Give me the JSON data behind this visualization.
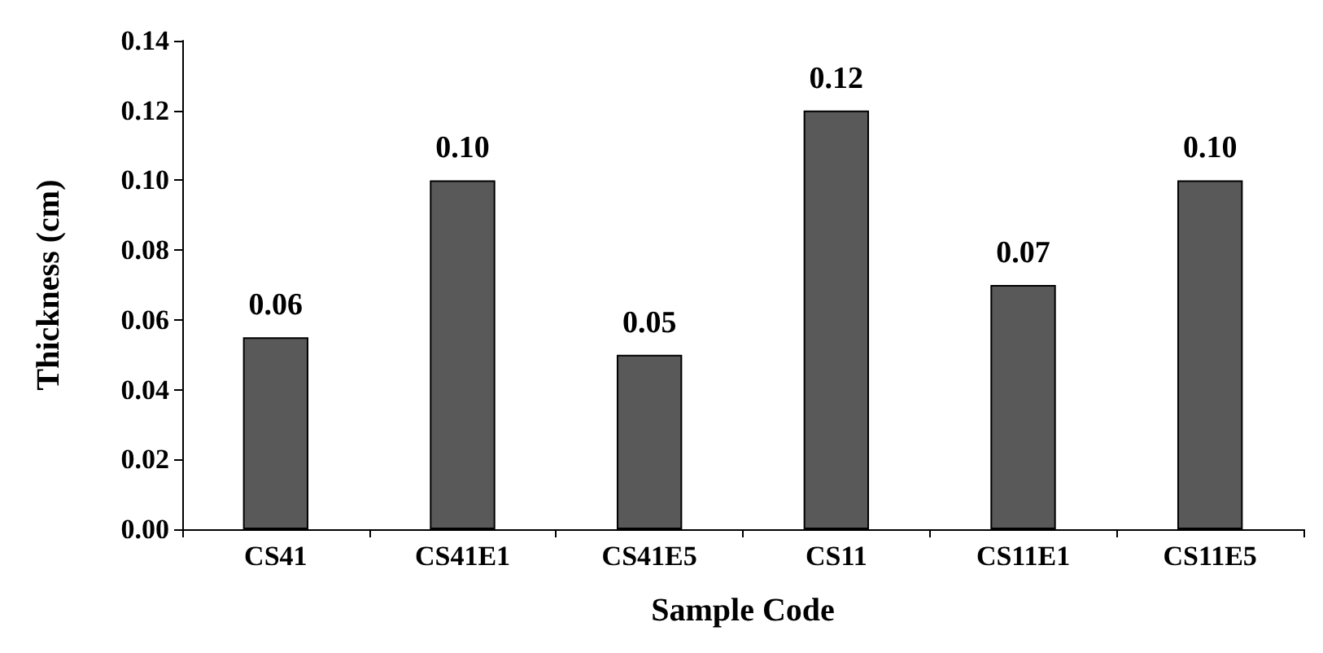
{
  "chart_data": {
    "type": "bar",
    "xlabel": "Sample Code",
    "ylabel": "Thickness (cm)",
    "categories": [
      "CS41",
      "CS41E1",
      "CS41E5",
      "CS11",
      "CS11E1",
      "CS11E5"
    ],
    "values": [
      0.055,
      0.1,
      0.05,
      0.12,
      0.07,
      0.1
    ],
    "value_labels": [
      "0.06",
      "0.10",
      "0.05",
      "0.12",
      "0.07",
      "0.10"
    ],
    "color": "#595959",
    "ylim": [
      0,
      0.14
    ],
    "yticks": [
      "0.00",
      "0.02",
      "0.04",
      "0.06",
      "0.08",
      "0.10",
      "0.12",
      "0.14"
    ],
    "grid": false
  }
}
